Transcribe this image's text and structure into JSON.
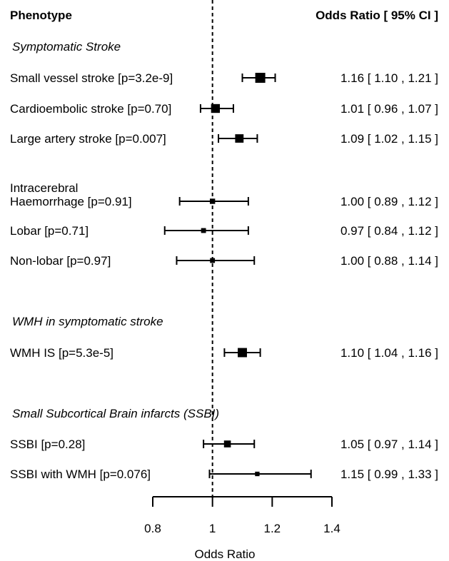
{
  "chart_data": {
    "type": "forest",
    "header": {
      "left": "Phenotype",
      "right": "Odds Ratio [ 95% CI ]"
    },
    "xlabel": "Odds Ratio",
    "xlim": [
      0.8,
      1.4
    ],
    "xticks": [
      "0.8",
      "1",
      "1.2",
      "1.4"
    ],
    "reference_line": 1,
    "rows": [
      {
        "kind": "group",
        "label": "Symptomatic Stroke"
      },
      {
        "kind": "item",
        "label": [
          "Small vessel stroke [p=3.2e-9]"
        ],
        "or": 1.16,
        "lo": 1.1,
        "hi": 1.21,
        "ci_text": "1.16 [ 1.10 , 1.21 ]",
        "weight": 1.0
      },
      {
        "kind": "item",
        "label": [
          "Cardioembolic stroke [p=0.70]"
        ],
        "or": 1.01,
        "lo": 0.96,
        "hi": 1.07,
        "ci_text": "1.01 [ 0.96 , 1.07 ]",
        "weight": 0.85
      },
      {
        "kind": "item",
        "label": [
          "Large artery stroke [p=0.007]"
        ],
        "or": 1.09,
        "lo": 1.02,
        "hi": 1.15,
        "ci_text": "1.09 [ 1.02 , 1.15 ]",
        "weight": 0.8
      },
      {
        "kind": "item",
        "label": [
          "Intracerebral",
          "Haemorrhage [p=0.91]"
        ],
        "or": 1.0,
        "lo": 0.89,
        "hi": 1.12,
        "ci_text": "1.00 [ 0.89 , 1.12 ]",
        "weight": 0.4
      },
      {
        "kind": "item",
        "label": [
          "Lobar [p=0.71]"
        ],
        "or": 0.97,
        "lo": 0.84,
        "hi": 1.12,
        "ci_text": "0.97 [ 0.84 , 1.12 ]",
        "weight": 0.35
      },
      {
        "kind": "item",
        "label": [
          "Non-lobar [p=0.97]"
        ],
        "or": 1.0,
        "lo": 0.88,
        "hi": 1.14,
        "ci_text": "1.00 [ 0.88 , 1.14 ]",
        "weight": 0.35
      },
      {
        "kind": "group",
        "label": "WMH in symptomatic stroke"
      },
      {
        "kind": "item",
        "label": [
          "WMH IS [p=5.3e-5]"
        ],
        "or": 1.1,
        "lo": 1.04,
        "hi": 1.16,
        "ci_text": "1.10 [ 1.04 , 1.16 ]",
        "weight": 0.9
      },
      {
        "kind": "group",
        "label": "Small Subcortical Brain infarcts (SSBI)"
      },
      {
        "kind": "item",
        "label": [
          "SSBI [p=0.28]"
        ],
        "or": 1.05,
        "lo": 0.97,
        "hi": 1.14,
        "ci_text": "1.05 [ 0.97 , 1.14 ]",
        "weight": 0.6
      },
      {
        "kind": "item",
        "label": [
          "SSBI with WMH [p=0.076]"
        ],
        "or": 1.15,
        "lo": 0.99,
        "hi": 1.33,
        "ci_text": "1.15 [ 0.99 , 1.33 ]",
        "weight": 0.3
      }
    ]
  }
}
